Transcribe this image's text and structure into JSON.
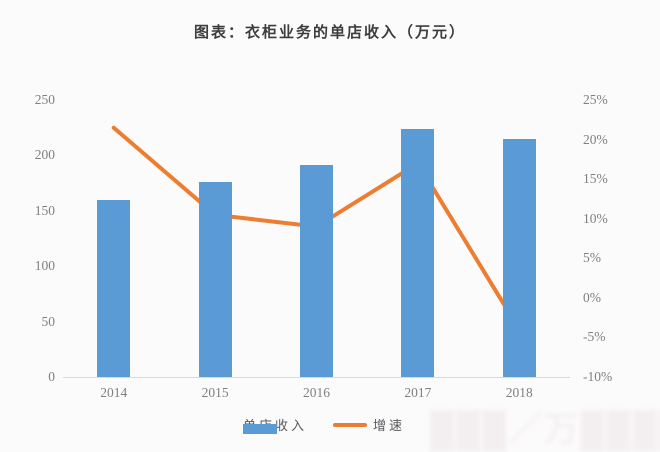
{
  "title": "图表：衣柜业务的单店收入（万元）",
  "watermark": "███／万████",
  "chart_data": {
    "type": "bar",
    "subtype": "bar+line combo",
    "title": "图表：衣柜业务的单店收入（万元）",
    "categories": [
      "2014",
      "2015",
      "2016",
      "2017",
      "2018"
    ],
    "series": [
      {
        "name": "单店收入",
        "type": "bar",
        "axis": "left",
        "values": [
          160,
          176,
          191,
          224,
          215
        ],
        "color": "#5B9BD5"
      },
      {
        "name": "增速",
        "type": "line",
        "axis": "right",
        "values_pct": [
          21.5,
          10.5,
          9,
          17,
          -4
        ],
        "color": "#ED7D31"
      }
    ],
    "left_axis": {
      "min": 0,
      "max": 250,
      "step": 50,
      "ticks": [
        "0",
        "50",
        "100",
        "150",
        "200",
        "250"
      ]
    },
    "right_axis": {
      "min": -10,
      "max": 25,
      "step": 5,
      "ticks": [
        "-10%",
        "-5%",
        "0%",
        "5%",
        "10%",
        "15%",
        "20%",
        "25%"
      ]
    },
    "grid": false,
    "legend_position": "bottom",
    "legend": [
      {
        "label": "单店收入",
        "color": "#5B9BD5",
        "swatch": "bar"
      },
      {
        "label": "增速",
        "color": "#ED7D31",
        "swatch": "line"
      }
    ]
  }
}
